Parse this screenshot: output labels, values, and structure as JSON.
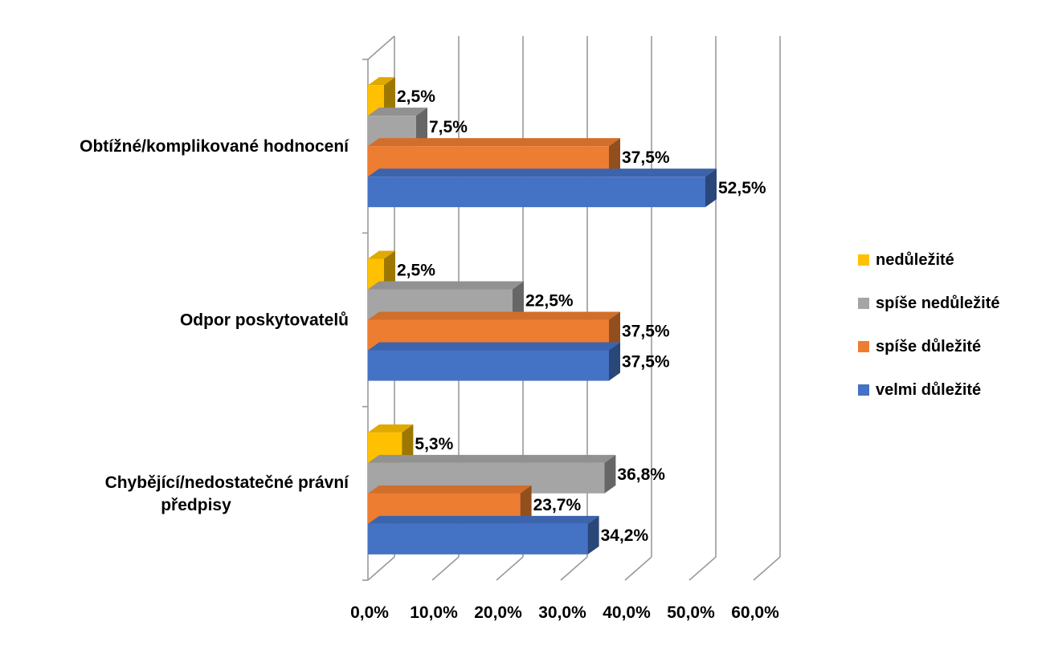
{
  "chart_data": {
    "type": "bar",
    "orientation": "horizontal",
    "style": "3d-clustered",
    "categories": [
      "Obtížné/komplikované hodnocení",
      "Odpor poskytovatelů",
      "Chybějící/nedostatečné právní předpisy"
    ],
    "category_lines": [
      [
        "Obtížné/komplikované hodnocení"
      ],
      [
        "Odpor poskytovatelů"
      ],
      [
        "Chybějící/nedostatečné právní",
        "předpisy"
      ]
    ],
    "series": [
      {
        "name": "nedůležité",
        "color": "#FFC000",
        "values": [
          2.5,
          2.5,
          5.3
        ],
        "labels": [
          "2,5%",
          "2,5%",
          "5,3%"
        ]
      },
      {
        "name": "spíše nedůležité",
        "color": "#A5A5A5",
        "values": [
          7.5,
          22.5,
          36.8
        ],
        "labels": [
          "7,5%",
          "22,5%",
          "36,8%"
        ]
      },
      {
        "name": "spíše důležité",
        "color": "#ED7D31",
        "values": [
          37.5,
          37.5,
          23.7
        ],
        "labels": [
          "37,5%",
          "37,5%",
          "23,7%"
        ]
      },
      {
        "name": "velmi důležité",
        "color": "#4472C4",
        "values": [
          52.5,
          37.5,
          34.2
        ],
        "labels": [
          "52,5%",
          "37,5%",
          "34,2%"
        ]
      }
    ],
    "xlim": [
      0,
      60
    ],
    "xticks": [
      0,
      10,
      20,
      30,
      40,
      50,
      60
    ],
    "xtick_labels": [
      "0,0%",
      "10,0%",
      "20,0%",
      "30,0%",
      "40,0%",
      "50,0%",
      "60,0%"
    ],
    "grid": true,
    "legend_position": "right",
    "title": "",
    "xlabel": "",
    "ylabel": ""
  }
}
